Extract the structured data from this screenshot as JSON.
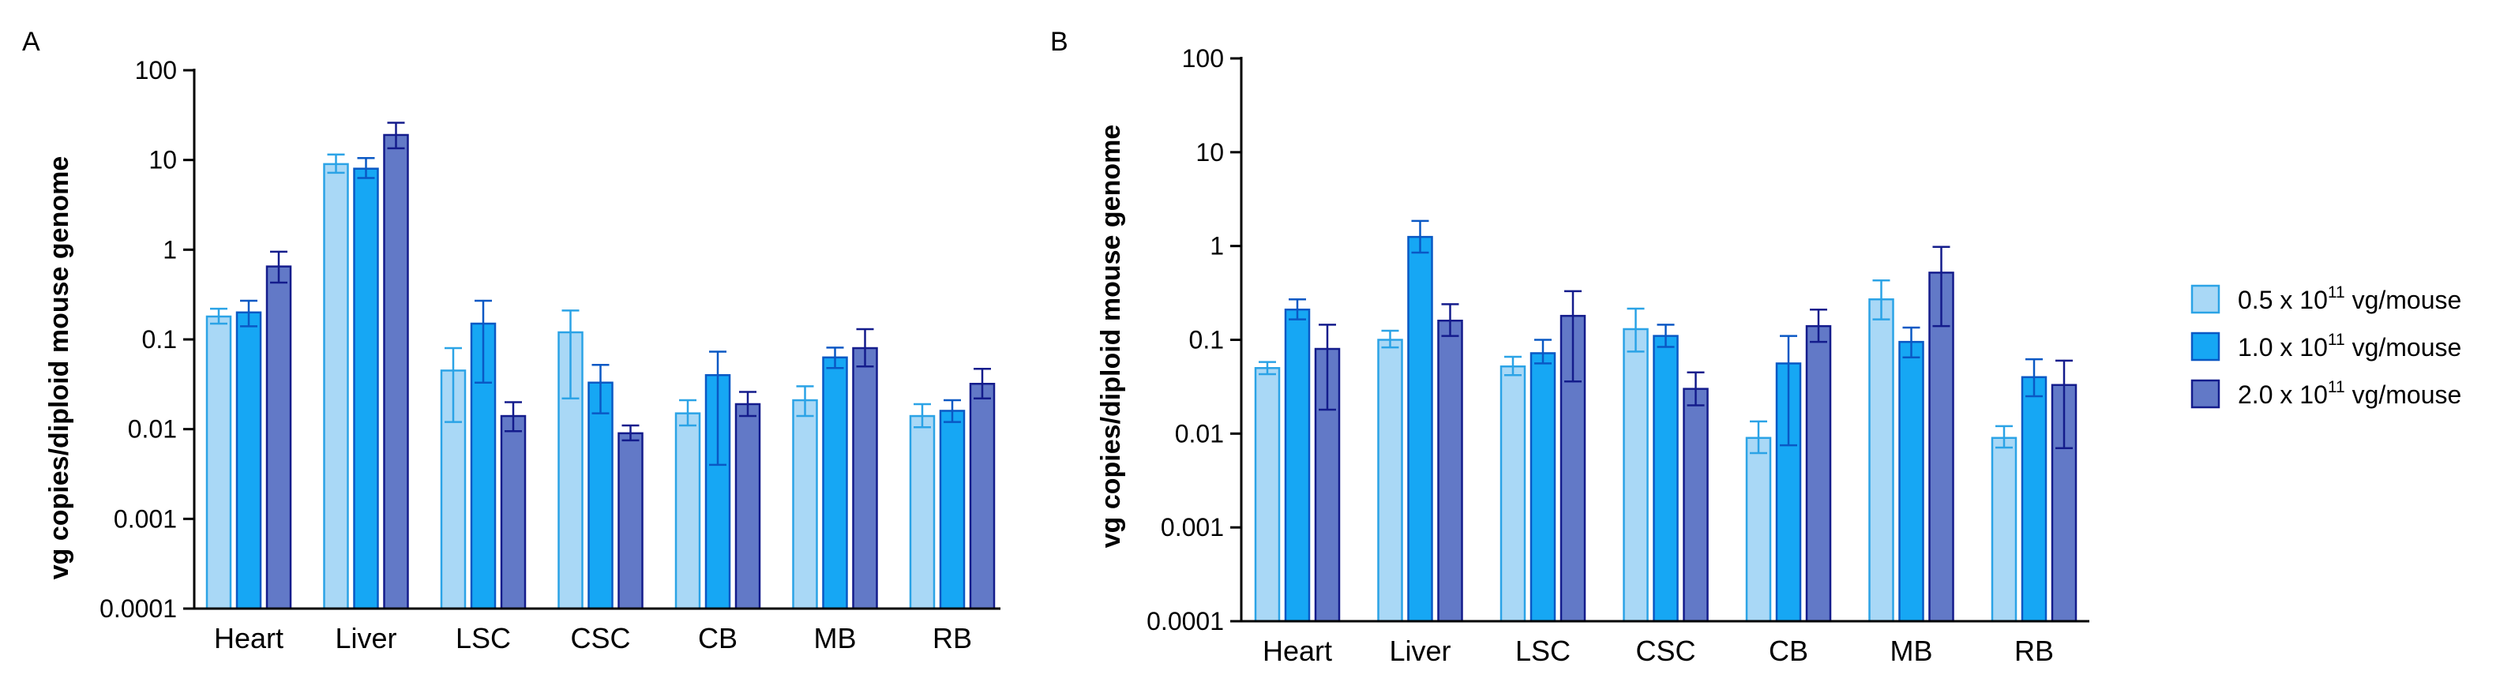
{
  "legend": {
    "entries": [
      {
        "prefix": "0.5 x 10",
        "sup": "11",
        "suffix": " vg/mouse",
        "fill": "#a9d8f6",
        "stroke": "#2ba3e6"
      },
      {
        "prefix": "1.0 x 10",
        "sup": "11",
        "suffix": " vg/mouse",
        "fill": "#16a7f4",
        "stroke": "#0a58c4"
      },
      {
        "prefix": "2.0 x 10",
        "sup": "11",
        "suffix": " vg/mouse",
        "fill": "#6279c7",
        "stroke": "#141c8c"
      }
    ]
  },
  "chart_data": [
    {
      "panel": "A",
      "type": "bar",
      "title": "",
      "xlabel": "",
      "ylabel": "vg copies/diploid mouse genome",
      "yscale": "log",
      "ylim": [
        0.0001,
        100
      ],
      "yticks": [
        {
          "value": 0.0001,
          "label": "0.0001"
        },
        {
          "value": 0.001,
          "label": "0.001"
        },
        {
          "value": 0.01,
          "label": "0.01"
        },
        {
          "value": 0.1,
          "label": "0.1"
        },
        {
          "value": 1,
          "label": "1"
        },
        {
          "value": 10,
          "label": "10"
        },
        {
          "value": 100,
          "label": "100"
        }
      ],
      "categories": [
        "Heart",
        "Liver",
        "LSC",
        "CSC",
        "CB",
        "MB",
        "RB"
      ],
      "series": [
        {
          "name": "0.5 x 10^11 vg/mouse",
          "values": [
            0.18,
            9.0,
            0.045,
            0.12,
            0.015,
            0.021,
            0.014
          ],
          "err_low": [
            0.15,
            7.2,
            0.012,
            0.022,
            0.011,
            0.014,
            0.0105
          ],
          "err_high": [
            0.22,
            11.5,
            0.08,
            0.21,
            0.021,
            0.03,
            0.019
          ]
        },
        {
          "name": "1.0 x 10^11 vg/mouse",
          "values": [
            0.2,
            8.0,
            0.15,
            0.033,
            0.04,
            0.063,
            0.016
          ],
          "err_low": [
            0.14,
            6.3,
            0.033,
            0.015,
            0.004,
            0.048,
            0.012
          ],
          "err_high": [
            0.27,
            10.5,
            0.27,
            0.052,
            0.073,
            0.081,
            0.021
          ]
        },
        {
          "name": "2.0 x 10^11 vg/mouse",
          "values": [
            0.65,
            19.0,
            0.014,
            0.009,
            0.019,
            0.08,
            0.032
          ],
          "err_low": [
            0.43,
            13.5,
            0.0095,
            0.0075,
            0.014,
            0.05,
            0.022
          ],
          "err_high": [
            0.95,
            26.0,
            0.02,
            0.011,
            0.026,
            0.13,
            0.047
          ]
        }
      ]
    },
    {
      "panel": "B",
      "type": "bar",
      "title": "",
      "xlabel": "",
      "ylabel": "vg copies/diploid mouse genome",
      "yscale": "log",
      "ylim": [
        0.0001,
        100
      ],
      "yticks": [
        {
          "value": 0.0001,
          "label": "0.0001"
        },
        {
          "value": 0.001,
          "label": "0.001"
        },
        {
          "value": 0.01,
          "label": "0.01"
        },
        {
          "value": 0.1,
          "label": "0.1"
        },
        {
          "value": 1,
          "label": "1"
        },
        {
          "value": 10,
          "label": "10"
        },
        {
          "value": 100,
          "label": "100"
        }
      ],
      "categories": [
        "Heart",
        "Liver",
        "LSC",
        "CSC",
        "CB",
        "MB",
        "RB"
      ],
      "series": [
        {
          "name": "0.5 x 10^11 vg/mouse",
          "values": [
            0.05,
            0.1,
            0.052,
            0.13,
            0.009,
            0.27,
            0.009
          ],
          "err_low": [
            0.043,
            0.083,
            0.042,
            0.075,
            0.0062,
            0.165,
            0.0071
          ],
          "err_high": [
            0.058,
            0.125,
            0.066,
            0.215,
            0.0135,
            0.43,
            0.012
          ]
        },
        {
          "name": "1.0 x 10^11 vg/mouse",
          "values": [
            0.21,
            1.25,
            0.072,
            0.11,
            0.056,
            0.095,
            0.04
          ],
          "err_low": [
            0.165,
            0.85,
            0.056,
            0.084,
            0.0075,
            0.065,
            0.025
          ],
          "err_high": [
            0.27,
            1.85,
            0.1,
            0.145,
            0.11,
            0.135,
            0.062
          ]
        },
        {
          "name": "2.0 x 10^11 vg/mouse",
          "values": [
            0.08,
            0.16,
            0.18,
            0.03,
            0.14,
            0.52,
            0.033
          ],
          "err_low": [
            0.018,
            0.11,
            0.036,
            0.02,
            0.095,
            0.14,
            0.007
          ],
          "err_high": [
            0.145,
            0.24,
            0.33,
            0.045,
            0.21,
            0.98,
            0.06
          ]
        }
      ]
    }
  ]
}
